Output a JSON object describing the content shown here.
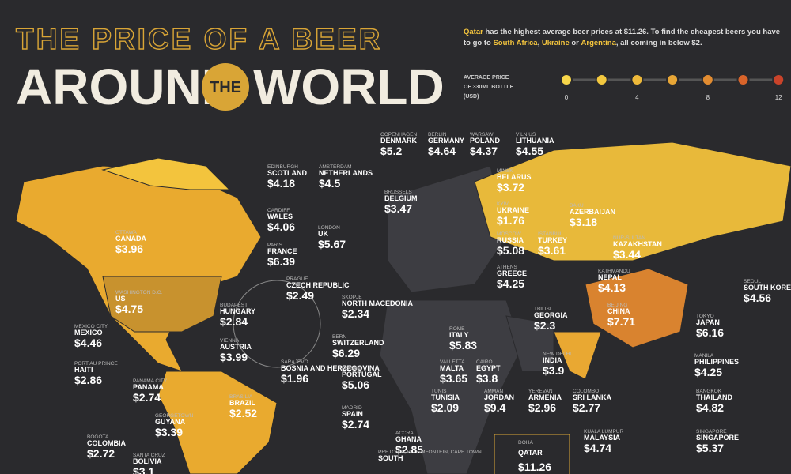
{
  "header": {
    "line1": "THE PRICE OF A BEER",
    "around": "AROUND",
    "the": "THE",
    "world": "WORLD"
  },
  "intro": [
    {
      "text": "Qatar",
      "bold": true
    },
    {
      "text": " has the highest average beer prices at $11.26. To find the cheapest beers you have to go to ",
      "bold": false
    },
    {
      "text": "South Africa",
      "bold": true
    },
    {
      "text": ", ",
      "bold": false
    },
    {
      "text": "Ukraine",
      "bold": true
    },
    {
      "text": " or ",
      "bold": false
    },
    {
      "text": "Argentina",
      "bold": true
    },
    {
      "text": ", all coming in below $2.",
      "bold": false
    }
  ],
  "legend": {
    "label": [
      "AVERAGE PRICE",
      "OF 330ML BOTTLE",
      "(USD)"
    ],
    "ticks": [
      "0",
      "4",
      "8",
      "12"
    ],
    "colors": [
      "#f7d64a",
      "#f3c83f",
      "#eeb93a",
      "#e8a636",
      "#e28c31",
      "#d9642a",
      "#c9432a"
    ]
  },
  "labels": [
    {
      "city": "COPENHAGEN",
      "country": "DENMARK",
      "price": "$5.2"
    },
    {
      "city": "BERLIN",
      "country": "GERMANY",
      "price": "$4.64"
    },
    {
      "city": "WARSAW",
      "country": "POLAND",
      "price": "$4.37"
    },
    {
      "city": "VILNIUS",
      "country": "LITHUANIA",
      "price": "$4.55"
    },
    {
      "city": "EDINBURGH",
      "country": "SCOTLAND",
      "price": "$4.18"
    },
    {
      "city": "AMSTERDAM",
      "country": "NETHERLANDS",
      "price": "$4.5"
    },
    {
      "city": "MINSK",
      "country": "BELARUS",
      "price": "$3.72"
    },
    {
      "city": "BRUSSELS",
      "country": "BELGIUM",
      "price": "$3.47"
    },
    {
      "city": "CARDIFF",
      "country": "WALES",
      "price": "$4.06"
    },
    {
      "city": "KYIV",
      "country": "UKRAINE",
      "price": "$1.76"
    },
    {
      "city": "BAKU",
      "country": "AZERBAIJAN",
      "price": "$3.18"
    },
    {
      "city": "OTTAWA",
      "country": "CANADA",
      "price": "$3.96"
    },
    {
      "city": "LONDON",
      "country": "UK",
      "price": "$5.67"
    },
    {
      "city": "MOSCOW",
      "country": "RUSSIA",
      "price": "$5.08"
    },
    {
      "city": "ISTANBUL",
      "country": "TURKEY",
      "price": "$3.61"
    },
    {
      "city": "NUR-SULTAN",
      "country": "KAZAKHSTAN",
      "price": "$3.44"
    },
    {
      "city": "PARIS",
      "country": "FRANCE",
      "price": "$6.39"
    },
    {
      "city": "ATHENS",
      "country": "GREECE",
      "price": "$4.25"
    },
    {
      "city": "KATHMANDU",
      "country": "NEPAL",
      "price": "$4.13"
    },
    {
      "city": "PRAGUE",
      "country": "CZECH REPUBLIC",
      "price": "$2.49"
    },
    {
      "city": "SKOPJE",
      "country": "NORTH MACEDONIA",
      "price": "$2.34"
    },
    {
      "city": "SEOUL",
      "country": "SOUTH KOREA",
      "price": "$4.56"
    },
    {
      "city": "WASHINGTON D.C.",
      "country": "US",
      "price": "$4.75"
    },
    {
      "city": "BUDAPEST",
      "country": "HUNGARY",
      "price": "$2.84"
    },
    {
      "city": "BEIJING",
      "country": "CHINA",
      "price": "$7.71"
    },
    {
      "city": "TBILISI",
      "country": "GEORGIA",
      "price": "$2.3"
    },
    {
      "city": "TOKYO",
      "country": "JAPAN",
      "price": "$6.16"
    },
    {
      "city": "MEXICO CITY",
      "country": "MEXICO",
      "price": "$4.46"
    },
    {
      "city": "ROME",
      "country": "ITALY",
      "price": "$5.83"
    },
    {
      "city": "BERN",
      "country": "SWITZERLAND",
      "price": "$6.29"
    },
    {
      "city": "VIENNA",
      "country": "AUSTRIA",
      "price": "$3.99"
    },
    {
      "city": "NEW DELHI",
      "country": "INDIA",
      "price": "$3.9"
    },
    {
      "city": "MANILA",
      "country": "PHILIPPINES",
      "price": "$4.25"
    },
    {
      "city": "PORT AU PRINCE",
      "country": "HAITI",
      "price": "$2.86"
    },
    {
      "city": "SARAJEVO",
      "country": "BOSNIA AND HERZEGOVINA",
      "price": "$1.96"
    },
    {
      "city": "VALLETTA",
      "country": "MALTA",
      "price": "$3.65"
    },
    {
      "city": "CAIRO",
      "country": "EGYPT",
      "price": "$3.8"
    },
    {
      "city": "LISBON",
      "country": "PORTUGAL",
      "price": "$5.06"
    },
    {
      "city": "PANAMA CITY",
      "country": "PANAMA",
      "price": "$2.74"
    },
    {
      "city": "BRASILIA",
      "country": "BRAZIL",
      "price": "$2.52"
    },
    {
      "city": "TUNIS",
      "country": "TUNISIA",
      "price": "$2.09"
    },
    {
      "city": "AMMAN",
      "country": "JORDAN",
      "price": "$9.4"
    },
    {
      "city": "YEREVAN",
      "country": "ARMENIA",
      "price": "$2.96"
    },
    {
      "city": "COLOMBO",
      "country": "SRI LANKA",
      "price": "$2.77"
    },
    {
      "city": "BANGKOK",
      "country": "THAILAND",
      "price": "$4.82"
    },
    {
      "city": "MADRID",
      "country": "SPAIN",
      "price": "$2.74"
    },
    {
      "city": "GEORGETOWN",
      "country": "GUYANA",
      "price": "$3.39"
    },
    {
      "city": "ACCRA",
      "country": "GHANA",
      "price": "$2.85"
    },
    {
      "city": "KUALA LUMPUR",
      "country": "MALAYSIA",
      "price": "$4.74"
    },
    {
      "city": "SINGAPORE",
      "country": "SINGAPORE",
      "price": "$5.37"
    },
    {
      "city": "BOGOTA",
      "country": "COLOMBIA",
      "price": "$2.72"
    },
    {
      "city": "SANTA CRUZ",
      "country": "BOLIVIA",
      "price": "$3.1"
    },
    {
      "city": "PRETORIA, BLOEMFONTEIN, CAPE TOWN",
      "country": "SOUTH",
      "price": ""
    },
    {
      "city": "DOHA",
      "country": "QATAR",
      "price": "$11.26"
    }
  ]
}
